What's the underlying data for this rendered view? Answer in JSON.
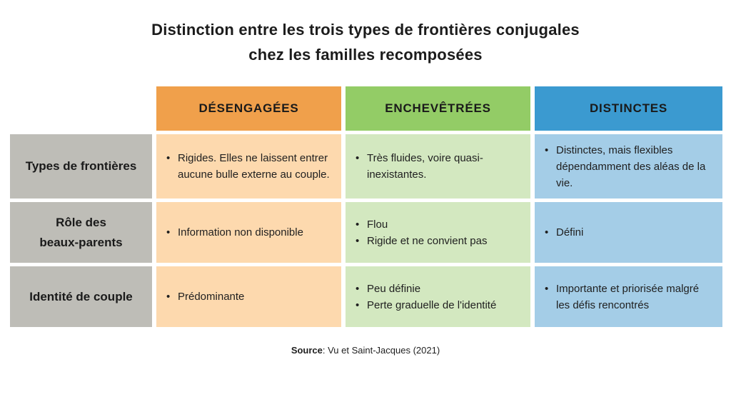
{
  "title": {
    "line1": "Distinction entre les trois types de frontières conjugales",
    "line2": "chez les familles recomposées"
  },
  "colors": {
    "col1_header": "#f0a04b",
    "col1_body": "#fdd9ae",
    "col2_header": "#93cc66",
    "col2_body": "#d3e8c0",
    "col3_header": "#3b9ad0",
    "col3_body": "#a4cde7",
    "row_header": "#bebdb7"
  },
  "columns": [
    "DÉSENGAGÉES",
    "ENCHEVÊTRÉES",
    "DISTINCTES"
  ],
  "rows": [
    {
      "label_lines": [
        "Types de frontières"
      ],
      "cells": [
        [
          "Rigides. Elles ne laissent entrer aucune bulle externe au couple."
        ],
        [
          "Très fluides, voire quasi-inexistantes."
        ],
        [
          "Distinctes, mais flexibles dépendamment des aléas de la vie."
        ]
      ]
    },
    {
      "label_lines": [
        "Rôle des",
        "beaux-parents"
      ],
      "cells": [
        [
          "Information non disponible"
        ],
        [
          "Flou",
          "Rigide et ne convient pas"
        ],
        [
          "Défini"
        ]
      ]
    },
    {
      "label_lines": [
        "Identité de couple"
      ],
      "cells": [
        [
          "Prédominante"
        ],
        [
          "Peu définie",
          "Perte graduelle de l'identité"
        ],
        [
          "Importante et priorisée malgré les défis rencontrés"
        ]
      ]
    }
  ],
  "source": {
    "label": "Source",
    "text": ": Vu et Saint-Jacques (2021)"
  }
}
